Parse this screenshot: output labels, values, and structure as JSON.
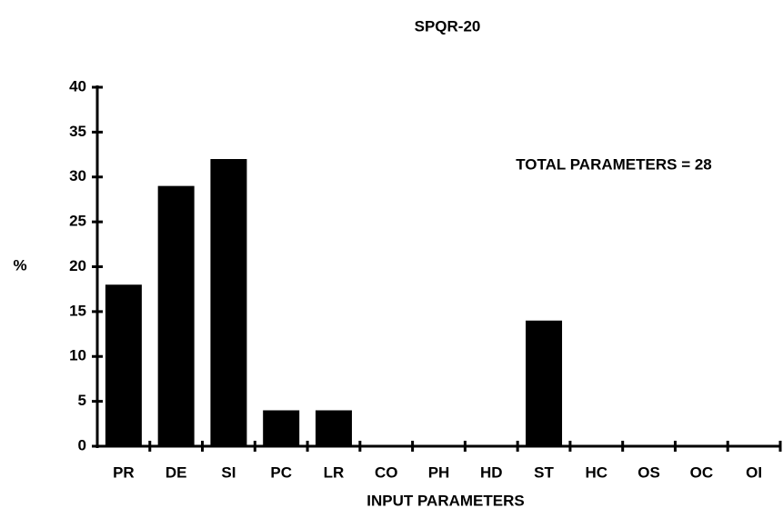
{
  "chart_data": {
    "type": "bar",
    "title": "SPQR-20",
    "x_label": "INPUT PARAMETERS",
    "y_label": "%",
    "annotation": "TOTAL PARAMETERS = 28",
    "categories": [
      "PR",
      "DE",
      "SI",
      "PC",
      "LR",
      "CO",
      "PH",
      "HD",
      "ST",
      "HC",
      "OS",
      "OC",
      "OI"
    ],
    "values": [
      18,
      29,
      32,
      4,
      4,
      0,
      0,
      0,
      14,
      0,
      0,
      0,
      0
    ],
    "color": "#000000",
    "ylim": [
      0,
      40
    ],
    "yticks": [
      0,
      5,
      10,
      15,
      20,
      25,
      30,
      35,
      40
    ],
    "grid": false
  }
}
